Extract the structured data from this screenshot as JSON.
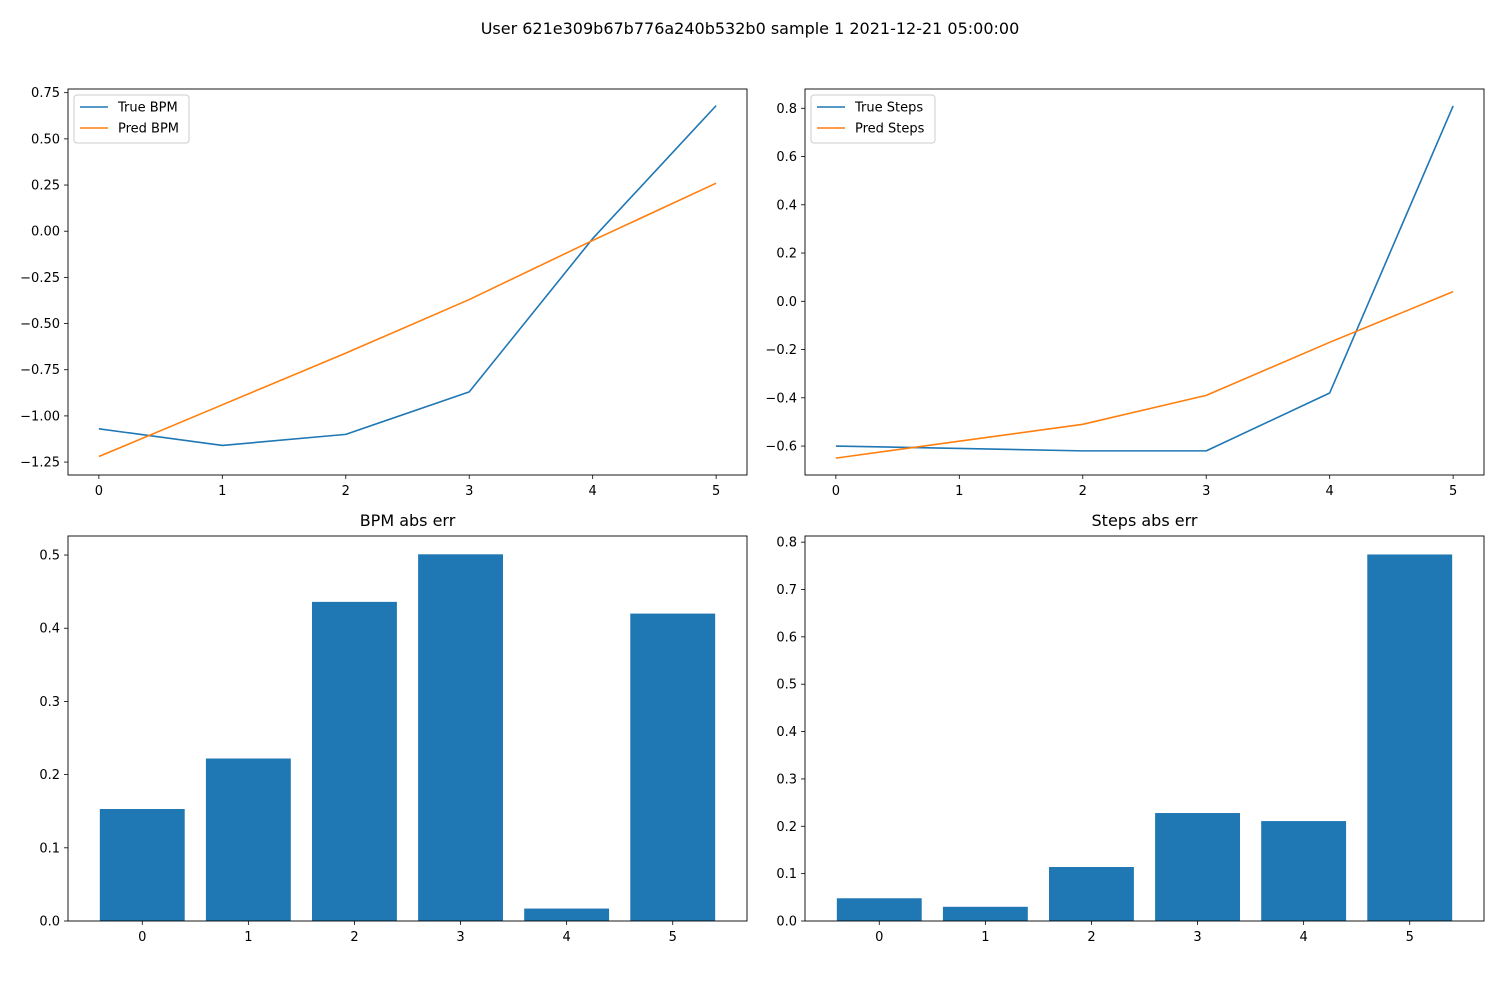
{
  "figure_title": "User 621e309b67b776a240b532b0 sample 1 2021-12-21 05:00:00",
  "colors": {
    "series_true": "#1f77b4",
    "series_pred": "#ff7f0e",
    "bar": "#1f77b4",
    "axes": "#000000"
  },
  "chart_data": [
    {
      "type": "line",
      "title": "",
      "xlabel": "",
      "ylabel": "",
      "x": [
        0,
        1,
        2,
        3,
        4,
        5
      ],
      "series": [
        {
          "name": "True BPM",
          "values": [
            -1.07,
            -1.16,
            -1.1,
            -0.87,
            -0.04,
            0.68
          ]
        },
        {
          "name": "Pred BPM",
          "values": [
            -1.22,
            -0.94,
            -0.66,
            -0.37,
            -0.05,
            0.26
          ]
        }
      ],
      "xlim": [
        -0.25,
        5.25
      ],
      "ylim": [
        -1.32,
        0.77
      ],
      "xticks": [
        "0",
        "1",
        "2",
        "3",
        "4",
        "5"
      ],
      "yticks": [
        "-1.25",
        "-1.00",
        "-0.75",
        "-0.50",
        "-0.25",
        "0.00",
        "0.25",
        "0.50",
        "0.75"
      ],
      "legend": "upper-left",
      "grid": false
    },
    {
      "type": "line",
      "title": "",
      "xlabel": "",
      "ylabel": "",
      "x": [
        0,
        1,
        2,
        3,
        4,
        5
      ],
      "series": [
        {
          "name": "True Steps",
          "values": [
            -0.6,
            -0.61,
            -0.62,
            -0.62,
            -0.38,
            0.81
          ]
        },
        {
          "name": "Pred Steps",
          "values": [
            -0.65,
            -0.58,
            -0.51,
            -0.39,
            -0.17,
            0.04
          ]
        }
      ],
      "xlim": [
        -0.25,
        5.25
      ],
      "ylim": [
        -0.72,
        0.88
      ],
      "xticks": [
        "0",
        "1",
        "2",
        "3",
        "4",
        "5"
      ],
      "yticks": [
        "-0.6",
        "-0.4",
        "-0.2",
        "0.0",
        "0.2",
        "0.4",
        "0.6",
        "0.8"
      ],
      "legend": "upper-left",
      "grid": false
    },
    {
      "type": "bar",
      "title": "BPM abs err",
      "xlabel": "",
      "ylabel": "",
      "categories": [
        "0",
        "1",
        "2",
        "3",
        "4",
        "5"
      ],
      "values": [
        0.153,
        0.222,
        0.436,
        0.501,
        0.017,
        0.42
      ],
      "ylim": [
        0,
        0.526
      ],
      "yticks": [
        "0.0",
        "0.1",
        "0.2",
        "0.3",
        "0.4",
        "0.5"
      ],
      "grid": false
    },
    {
      "type": "bar",
      "title": "Steps abs err",
      "xlabel": "",
      "ylabel": "",
      "categories": [
        "0",
        "1",
        "2",
        "3",
        "4",
        "5"
      ],
      "values": [
        0.048,
        0.03,
        0.114,
        0.228,
        0.211,
        0.774
      ],
      "ylim": [
        0,
        0.813
      ],
      "yticks": [
        "0.0",
        "0.1",
        "0.2",
        "0.3",
        "0.4",
        "0.5",
        "0.6",
        "0.7",
        "0.8"
      ],
      "grid": false
    }
  ]
}
